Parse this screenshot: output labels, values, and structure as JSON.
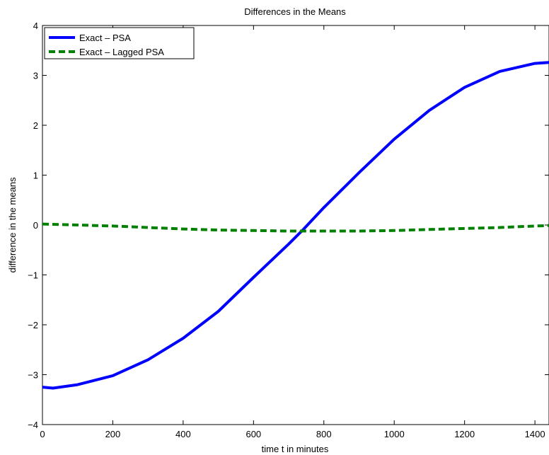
{
  "chart_data": {
    "type": "line",
    "title": "Differences in the Means",
    "xlabel": "time t in minutes",
    "ylabel": "difference in the means",
    "xlim": [
      0,
      1440
    ],
    "ylim": [
      -4,
      4
    ],
    "xticks": [
      0,
      200,
      400,
      600,
      800,
      1000,
      1200,
      1400
    ],
    "yticks": [
      -4,
      -3,
      -2,
      -1,
      0,
      1,
      2,
      3,
      4
    ],
    "xtick_labels": [
      "0",
      "200",
      "400",
      "600",
      "800",
      "1000",
      "1200",
      "1400"
    ],
    "ytick_labels": [
      "−4",
      "−3",
      "−2",
      "−1",
      "0",
      "1",
      "2",
      "3",
      "4"
    ],
    "grid": false,
    "legend_position": "top-left",
    "series": [
      {
        "name": "Exact – PSA",
        "color": "#0000ff",
        "style": "solid",
        "x": [
          0,
          30,
          100,
          200,
          300,
          400,
          500,
          600,
          700,
          740,
          800,
          900,
          1000,
          1100,
          1200,
          1300,
          1400,
          1440
        ],
        "y": [
          -3.25,
          -3.27,
          -3.2,
          -3.02,
          -2.7,
          -2.27,
          -1.73,
          -1.05,
          -0.38,
          -0.1,
          0.35,
          1.05,
          1.72,
          2.3,
          2.76,
          3.08,
          3.24,
          3.26
        ]
      },
      {
        "name": "Exact – Lagged PSA",
        "color": "#008000",
        "style": "dashed",
        "x": [
          0,
          100,
          200,
          300,
          400,
          500,
          600,
          700,
          800,
          900,
          1000,
          1100,
          1200,
          1300,
          1400,
          1440
        ],
        "y": [
          0.02,
          0.0,
          -0.02,
          -0.05,
          -0.08,
          -0.1,
          -0.11,
          -0.12,
          -0.12,
          -0.12,
          -0.11,
          -0.09,
          -0.07,
          -0.05,
          -0.02,
          -0.01
        ]
      }
    ]
  }
}
